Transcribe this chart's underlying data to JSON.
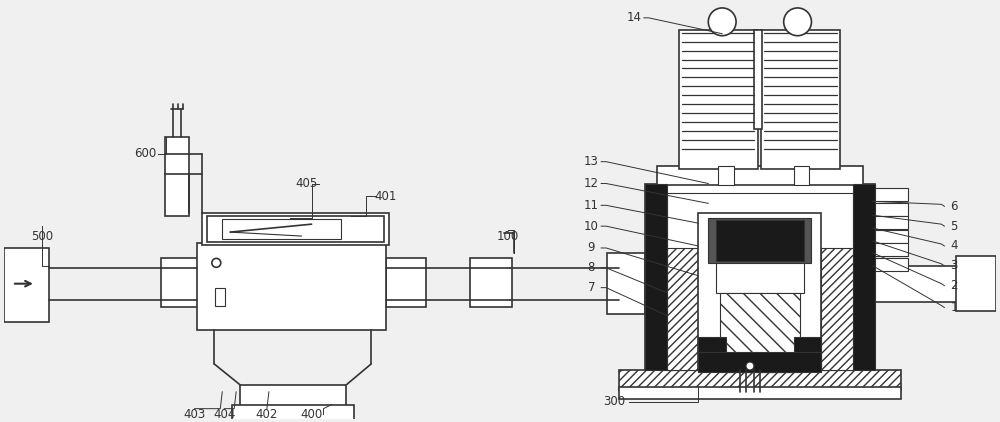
{
  "bg_color": "#f0f0f0",
  "line_color": "#333333",
  "dark_fill": "#1a1a1a",
  "med_fill": "#555555",
  "light_fill": "#aaaaaa",
  "hatch_fill": "#888888"
}
